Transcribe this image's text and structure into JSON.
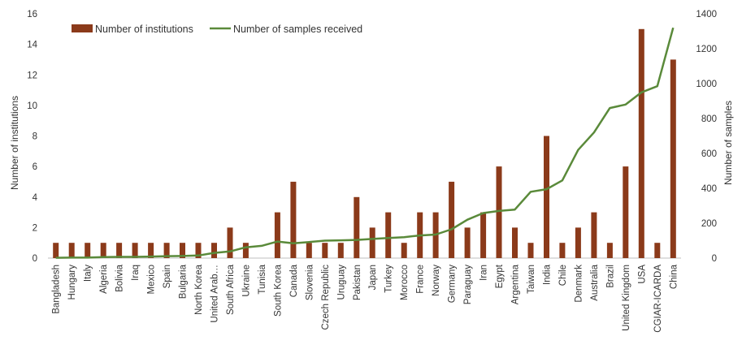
{
  "chart_data": {
    "type": "bar",
    "categories": [
      "Bangladesh",
      "Hungary",
      "Italy",
      "Algeria",
      "Bolivia",
      "Iraq",
      "Mexico",
      "Spain",
      "Bulgaria",
      "North Korea",
      "United Arab…",
      "South Africa",
      "Ukraine",
      "Tunisia",
      "South Korea",
      "Canada",
      "Slovenia",
      "Czech Republic",
      "Uruguay",
      "Pakistan",
      "Japan",
      "Turkey",
      "Morocco",
      "France",
      "Norway",
      "Germany",
      "Paraguay",
      "Iran",
      "Egypt",
      "Argentina",
      "Taiwan",
      "India",
      "Chile",
      "Denmark",
      "Australia",
      "Brazil",
      "United Kingdom",
      "USA",
      "CGIAR-ICARDA",
      "China"
    ],
    "series": [
      {
        "name": "Number of institutions",
        "type": "bar",
        "axis": "left",
        "color": "#8B3A1A",
        "values": [
          1,
          1,
          1,
          1,
          1,
          1,
          1,
          1,
          1,
          1,
          1,
          2,
          1,
          0,
          3,
          5,
          1,
          1,
          1,
          4,
          2,
          3,
          1,
          3,
          3,
          5,
          2,
          3,
          6,
          2,
          1,
          8,
          1,
          2,
          3,
          1,
          6,
          15,
          1,
          13
        ]
      },
      {
        "name": "Number of samples received",
        "type": "line",
        "axis": "right",
        "color": "#5A8A3A",
        "values": [
          2,
          3,
          3,
          6,
          7,
          7,
          9,
          11,
          12,
          15,
          30,
          38,
          62,
          70,
          95,
          85,
          92,
          100,
          102,
          104,
          110,
          115,
          120,
          130,
          135,
          165,
          220,
          258,
          270,
          278,
          380,
          395,
          445,
          620,
          720,
          860,
          880,
          950,
          985,
          1320
        ]
      }
    ],
    "y_left": {
      "label": "Number of institutions",
      "ylim": [
        0,
        16
      ],
      "ticks": [
        "0",
        "2",
        "4",
        "6",
        "8",
        "10",
        "12",
        "14",
        "16"
      ]
    },
    "y_right": {
      "label": "Number of samples",
      "ylim": [
        0,
        1400
      ],
      "ticks": [
        "0",
        "200",
        "400",
        "600",
        "800",
        "1000",
        "1200",
        "1400"
      ]
    },
    "grid": false,
    "legend": {
      "placement": "top-left",
      "entries": [
        "Number of institutions",
        "Number of samples received"
      ]
    }
  }
}
